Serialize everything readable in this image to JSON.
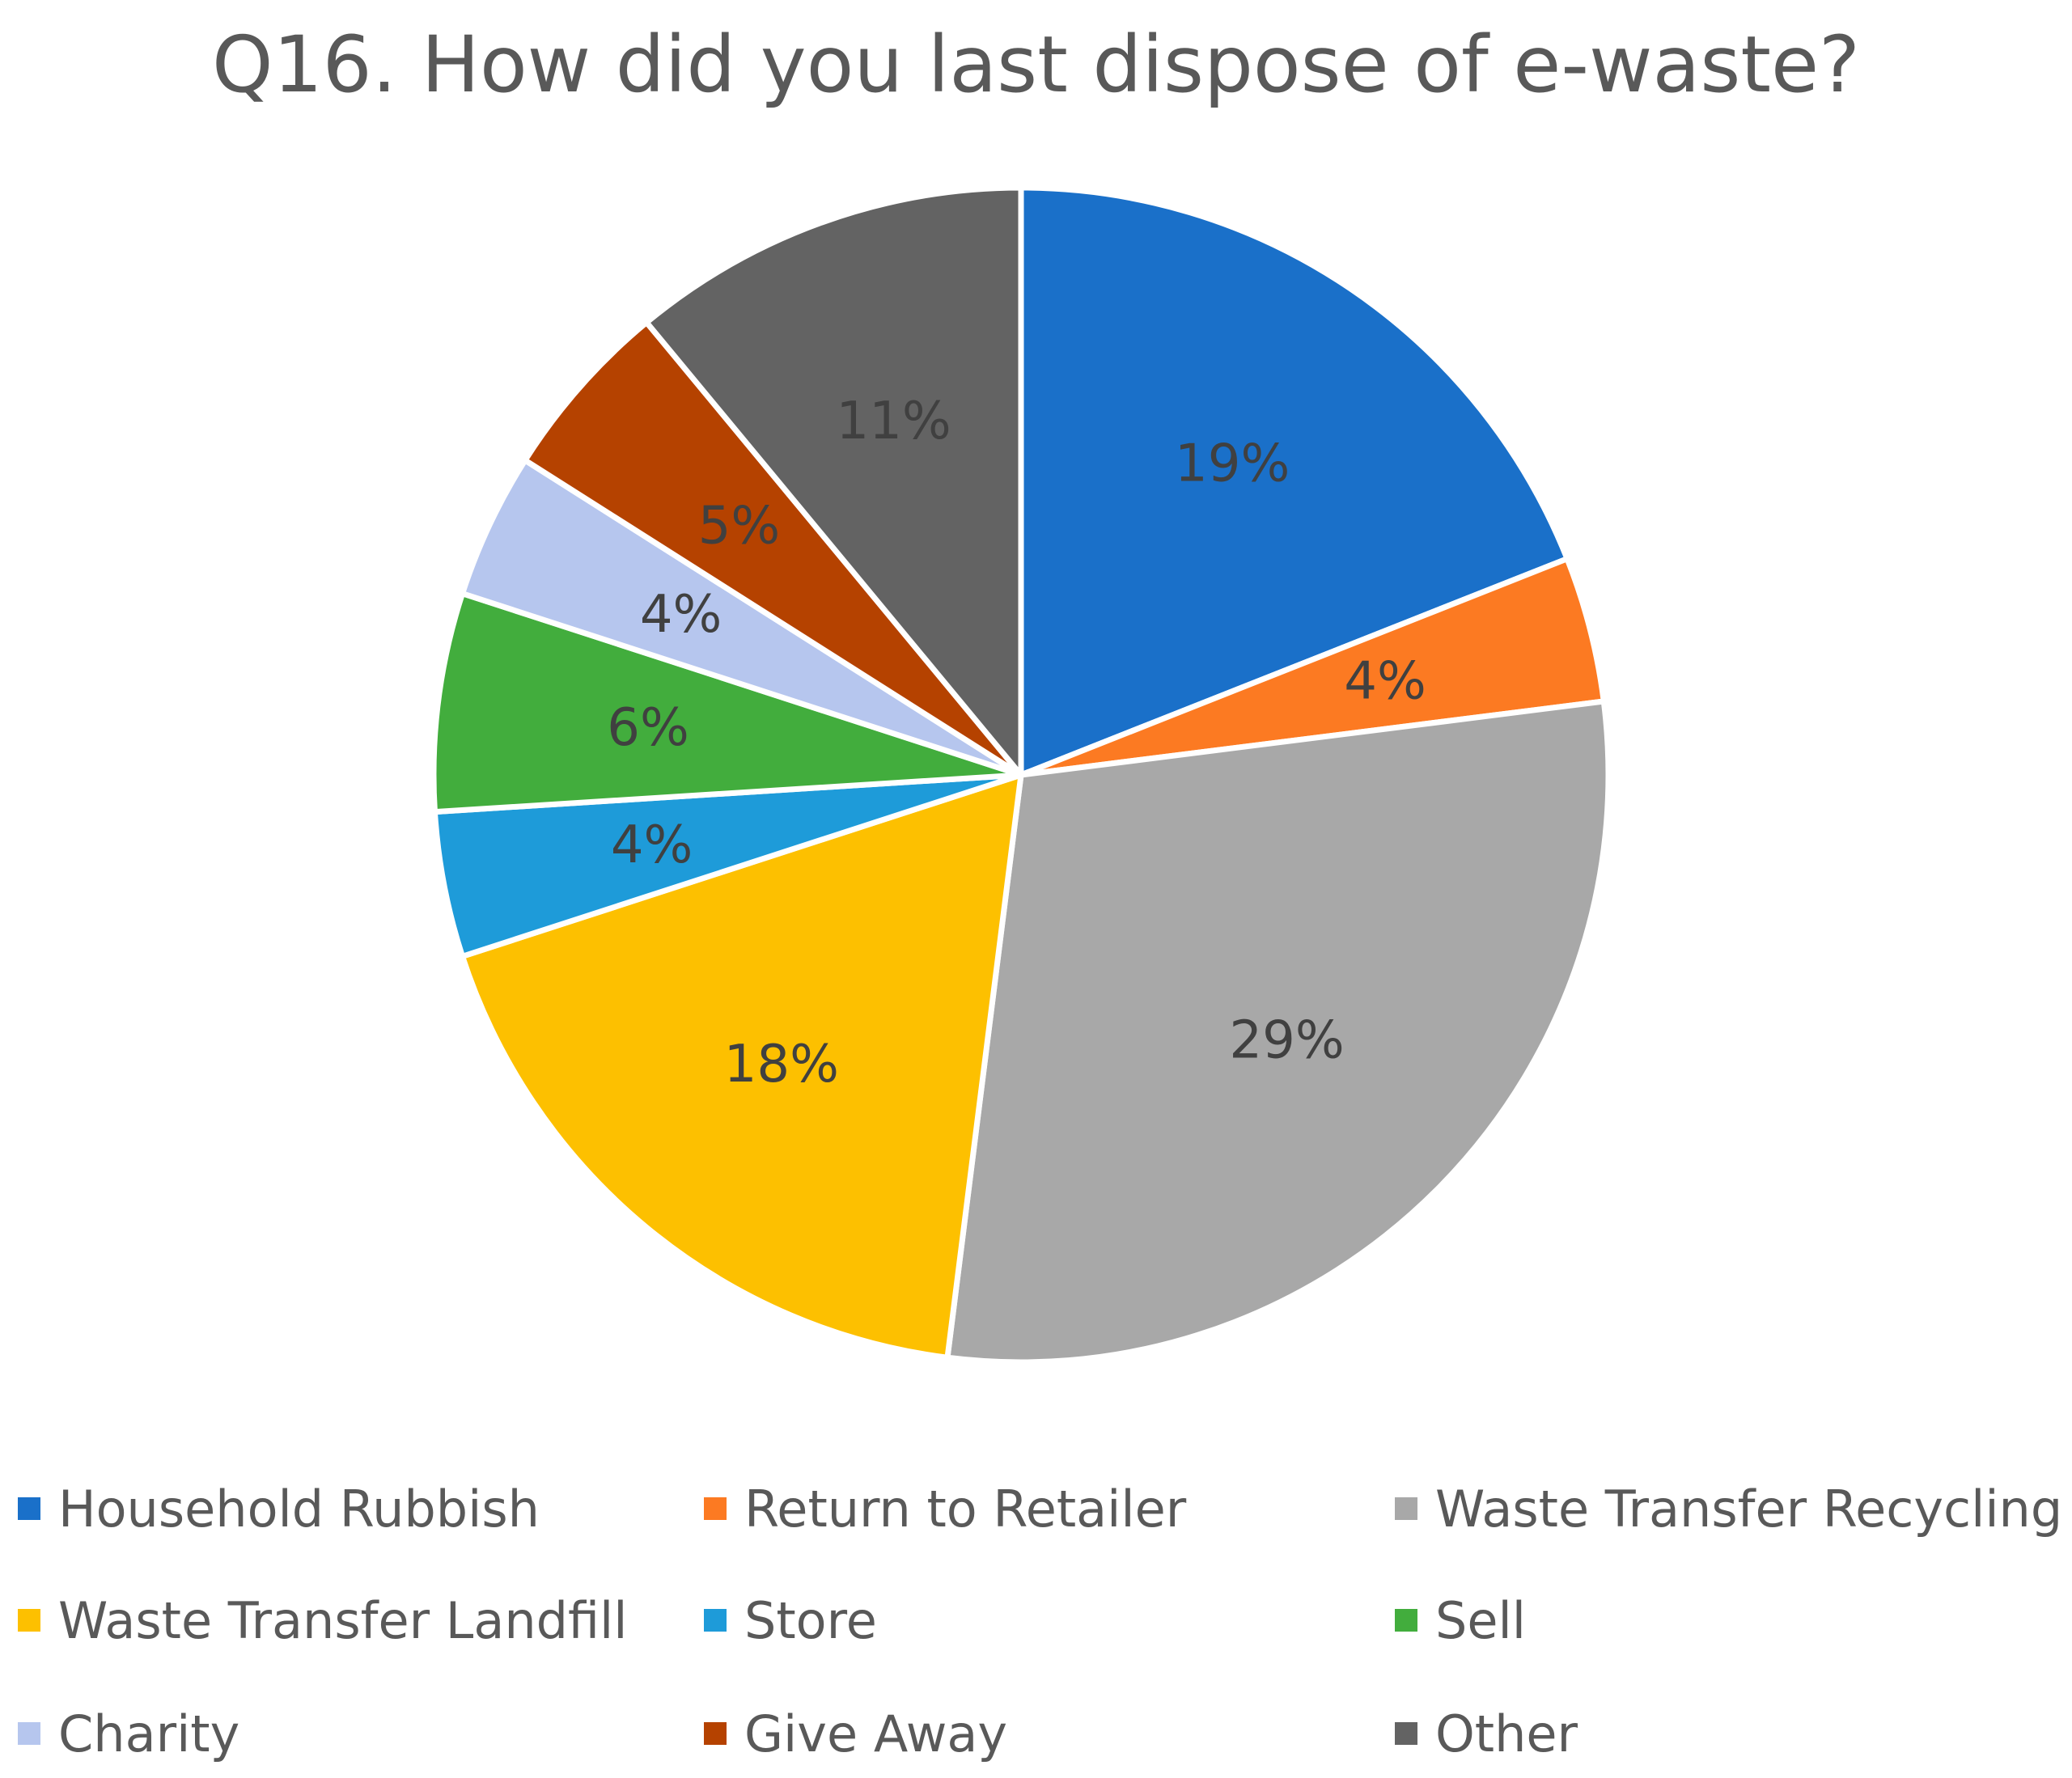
{
  "chart_data": {
    "type": "pie",
    "title": "Q16. How did you last dispose of e-waste?",
    "categories": [
      "Household Rubbish",
      "Return to Retailer",
      "Waste Transfer Recycling",
      "Waste Transfer Landfill",
      "Store",
      "Sell",
      "Charity",
      "Give Away",
      "Other"
    ],
    "values": [
      19,
      4,
      29,
      18,
      4,
      6,
      4,
      5,
      11
    ],
    "data_labels": [
      "19%",
      "4%",
      "29%",
      "18%",
      "4%",
      "6%",
      "4%",
      "5%",
      "11%"
    ],
    "colors": [
      "#1A70C9",
      "#FC7A22",
      "#A8A8A8",
      "#FDC000",
      "#1E9BD9",
      "#42AD3D",
      "#B6C6EE",
      "#B54200",
      "#636363"
    ],
    "start_angle_deg": 0,
    "direction": "clockwise",
    "legend_position": "bottom"
  }
}
